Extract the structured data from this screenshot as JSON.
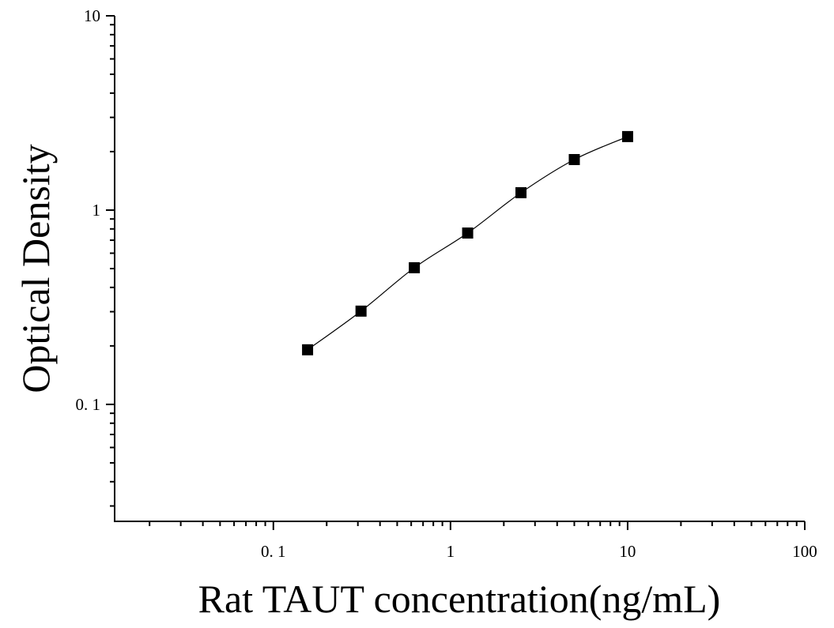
{
  "chart_data": {
    "type": "scatter",
    "x_label": "Rat TAUT concentration(ng/mL)",
    "y_label": "Optical Density",
    "x": [
      0.156,
      0.3125,
      0.625,
      1.25,
      2.5,
      5,
      10
    ],
    "series": [
      {
        "color": "#000000",
        "values": [
          0.191,
          0.302,
          0.505,
          0.762,
          1.229,
          1.82,
          2.39
        ]
      }
    ],
    "xlim": [
      0.0127,
      100
    ],
    "ylim": [
      0.025,
      10
    ],
    "xticks": [
      {
        "value": 0.1,
        "label": "0. 1"
      },
      1,
      10,
      100
    ],
    "yticks": [
      {
        "value": 0.1,
        "label": "0. 1"
      },
      1,
      10
    ],
    "xscale": "log",
    "yscale": "log",
    "fit_curve": true
  }
}
